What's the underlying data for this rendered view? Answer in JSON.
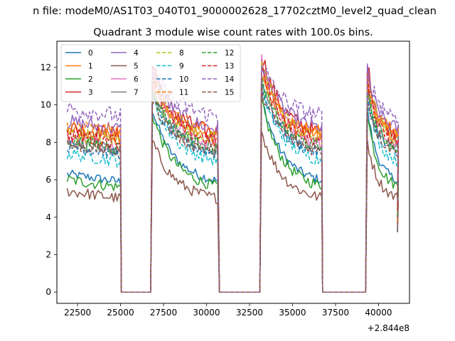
{
  "chart_data": {
    "type": "line",
    "suptitle": "n file: modeM0/AS1T03_040T01_9000002628_17702cztM0_level2_quad_clean",
    "title": "Quadrant 3 module wise count rates with 100.0s bins.",
    "xlabel": "",
    "ylabel": "",
    "x_offset_label": "+2.844e8",
    "xlim": [
      21300,
      41800
    ],
    "ylim": [
      -0.6,
      13.4
    ],
    "x_ticks": [
      22500,
      25000,
      27500,
      30000,
      32500,
      35000,
      37500,
      40000
    ],
    "x_tick_labels": [
      "22500",
      "25000",
      "27500",
      "30000",
      "32500",
      "35000",
      "37500",
      "40000"
    ],
    "y_ticks": [
      0,
      2,
      4,
      6,
      8,
      10,
      12
    ],
    "y_tick_labels": [
      "0",
      "2",
      "4",
      "6",
      "8",
      "10",
      "12"
    ],
    "legend_position": "upper-left",
    "active_intervals": [
      [
        21900,
        24950
      ],
      [
        26850,
        30650
      ],
      [
        33200,
        36650
      ],
      [
        39350,
        41100
      ]
    ],
    "gap_intervals": [
      [
        25050,
        26750
      ],
      [
        30750,
        33100
      ],
      [
        36750,
        39250
      ]
    ],
    "series": [
      {
        "name": "0",
        "color": "#1f77b4",
        "style": "solid",
        "level": 6.1,
        "noise": 0.25,
        "peak": 10.4
      },
      {
        "name": "1",
        "color": "#ff7f0e",
        "style": "solid",
        "level": 8.4,
        "noise": 0.4,
        "peak": 11.6
      },
      {
        "name": "2",
        "color": "#2ca02c",
        "style": "solid",
        "level": 5.8,
        "noise": 0.3,
        "peak": 10.2
      },
      {
        "name": "3",
        "color": "#d62728",
        "style": "solid",
        "level": 8.6,
        "noise": 0.45,
        "peak": 12.8
      },
      {
        "name": "4",
        "color": "#9467bd",
        "style": "solid",
        "level": 8.9,
        "noise": 0.4,
        "peak": 12.2
      },
      {
        "name": "5",
        "color": "#8c564b",
        "style": "solid",
        "level": 5.2,
        "noise": 0.3,
        "peak": 8.6
      },
      {
        "name": "6",
        "color": "#e377c2",
        "style": "solid",
        "level": 8.0,
        "noise": 0.35,
        "peak": 12.5
      },
      {
        "name": "7",
        "color": "#7f7f7f",
        "style": "solid",
        "level": 7.8,
        "noise": 0.35,
        "peak": 11.2
      },
      {
        "name": "8",
        "color": "#bcbd22",
        "style": "dashed",
        "level": 8.3,
        "noise": 0.4,
        "peak": 12.4
      },
      {
        "name": "9",
        "color": "#17becf",
        "style": "dashed",
        "level": 7.2,
        "noise": 0.35,
        "peak": 11.0
      },
      {
        "name": "10",
        "color": "#1f77b4",
        "style": "dashed",
        "level": 7.6,
        "noise": 0.35,
        "peak": 11.0
      },
      {
        "name": "11",
        "color": "#ff7f0e",
        "style": "dashed",
        "level": 8.7,
        "noise": 0.4,
        "peak": 11.8
      },
      {
        "name": "12",
        "color": "#2ca02c",
        "style": "dashed",
        "level": 7.9,
        "noise": 0.35,
        "peak": 11.3
      },
      {
        "name": "13",
        "color": "#d62728",
        "style": "dashed",
        "level": 8.2,
        "noise": 0.4,
        "peak": 12.0
      },
      {
        "name": "14",
        "color": "#9467bd",
        "style": "dashed",
        "level": 9.6,
        "noise": 0.45,
        "peak": 12.3
      },
      {
        "name": "15",
        "color": "#8c564b",
        "style": "dashed",
        "level": 7.7,
        "noise": 0.35,
        "peak": 10.8
      }
    ]
  }
}
